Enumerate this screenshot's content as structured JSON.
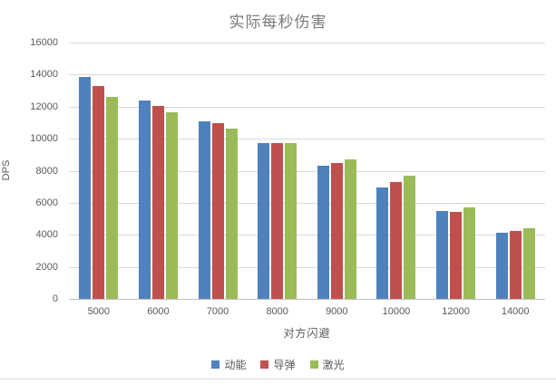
{
  "chart_data": {
    "type": "bar",
    "title": "实际每秒伤害",
    "xlabel": "对方闪避",
    "ylabel": "DPS",
    "categories": [
      "5000",
      "6000",
      "7000",
      "8000",
      "9000",
      "10000",
      "12000",
      "14000"
    ],
    "series": [
      {
        "name": "动能",
        "color": "#4F81BD",
        "values": [
          13850,
          12400,
          11100,
          9700,
          8300,
          6950,
          5500,
          4150
        ]
      },
      {
        "name": "导弹",
        "color": "#C0504D",
        "values": [
          13300,
          12050,
          10950,
          9750,
          8500,
          7300,
          5450,
          4250
        ]
      },
      {
        "name": "激光",
        "color": "#9BBB59",
        "values": [
          12600,
          11650,
          10650,
          9700,
          8700,
          7700,
          5700,
          4400
        ]
      }
    ],
    "ylim": [
      0,
      16000
    ],
    "ytick_step": 2000,
    "grid": true,
    "legend_position": "bottom",
    "colors": {
      "grid": "#d9d9d9",
      "axis": "#bfbfbf",
      "text": "#595959",
      "title": "#7a7a7a"
    }
  }
}
